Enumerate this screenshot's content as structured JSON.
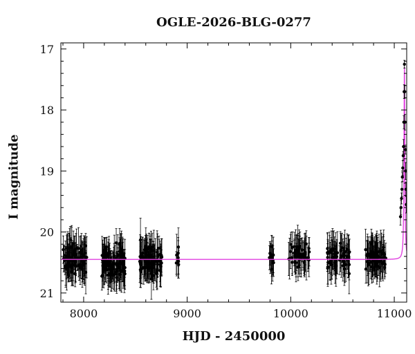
{
  "chart_data": {
    "type": "scatter",
    "title": "OGLE-2026-BLG-0277",
    "xlabel": "HJD - 2450000",
    "ylabel": "I magnitude",
    "xlim": [
      7780,
      11120
    ],
    "ylim": [
      21.15,
      16.9
    ],
    "y_inverted": true,
    "xticks": [
      8000,
      9000,
      10000,
      11000
    ],
    "yticks": [
      17,
      18,
      19,
      20,
      21
    ],
    "grid": false,
    "colors": {
      "points": "#000000",
      "model": "#e040e0",
      "axes": "#000000"
    },
    "series": [
      {
        "kind": "observations",
        "style": "points with error bars",
        "seasons": [
          {
            "x_range": [
              7800,
              8030
            ],
            "mean_mag": 20.45,
            "scatter": 0.22,
            "n": 90
          },
          {
            "x_range": [
              8170,
              8400
            ],
            "mean_mag": 20.5,
            "scatter": 0.22,
            "n": 95
          },
          {
            "x_range": [
              8540,
              8760
            ],
            "mean_mag": 20.45,
            "scatter": 0.25,
            "n": 95
          },
          {
            "x_range": [
              8890,
              8930
            ],
            "mean_mag": 20.4,
            "scatter": 0.2,
            "n": 8
          },
          {
            "x_range": [
              9790,
              9840
            ],
            "mean_mag": 20.4,
            "scatter": 0.18,
            "n": 14
          },
          {
            "x_range": [
              9980,
              10180
            ],
            "mean_mag": 20.38,
            "scatter": 0.18,
            "n": 50
          },
          {
            "x_range": [
              10350,
              10570
            ],
            "mean_mag": 20.42,
            "scatter": 0.18,
            "n": 65
          },
          {
            "x_range": [
              10720,
              10920
            ],
            "mean_mag": 20.42,
            "scatter": 0.18,
            "n": 70
          }
        ],
        "event_points": [
          [
            11060,
            19.75
          ],
          [
            11065,
            19.6
          ],
          [
            11070,
            19.45
          ],
          [
            11074,
            19.3
          ],
          [
            11078,
            19.1
          ],
          [
            11082,
            18.95
          ],
          [
            11086,
            18.75
          ],
          [
            11089,
            18.6
          ],
          [
            11092,
            18.2
          ],
          [
            11095,
            17.7
          ],
          [
            11098,
            17.25
          ],
          [
            11101,
            17.7
          ],
          [
            11104,
            18.2
          ],
          [
            11107,
            18.65
          ],
          [
            11110,
            19.0
          ],
          [
            11113,
            19.3
          ],
          [
            11116,
            19.55
          ]
        ]
      },
      {
        "kind": "model",
        "style": "line",
        "baseline_mag": 20.45,
        "peak_x": 11098,
        "peak_mag": 17.3,
        "width_days": 6
      }
    ]
  }
}
